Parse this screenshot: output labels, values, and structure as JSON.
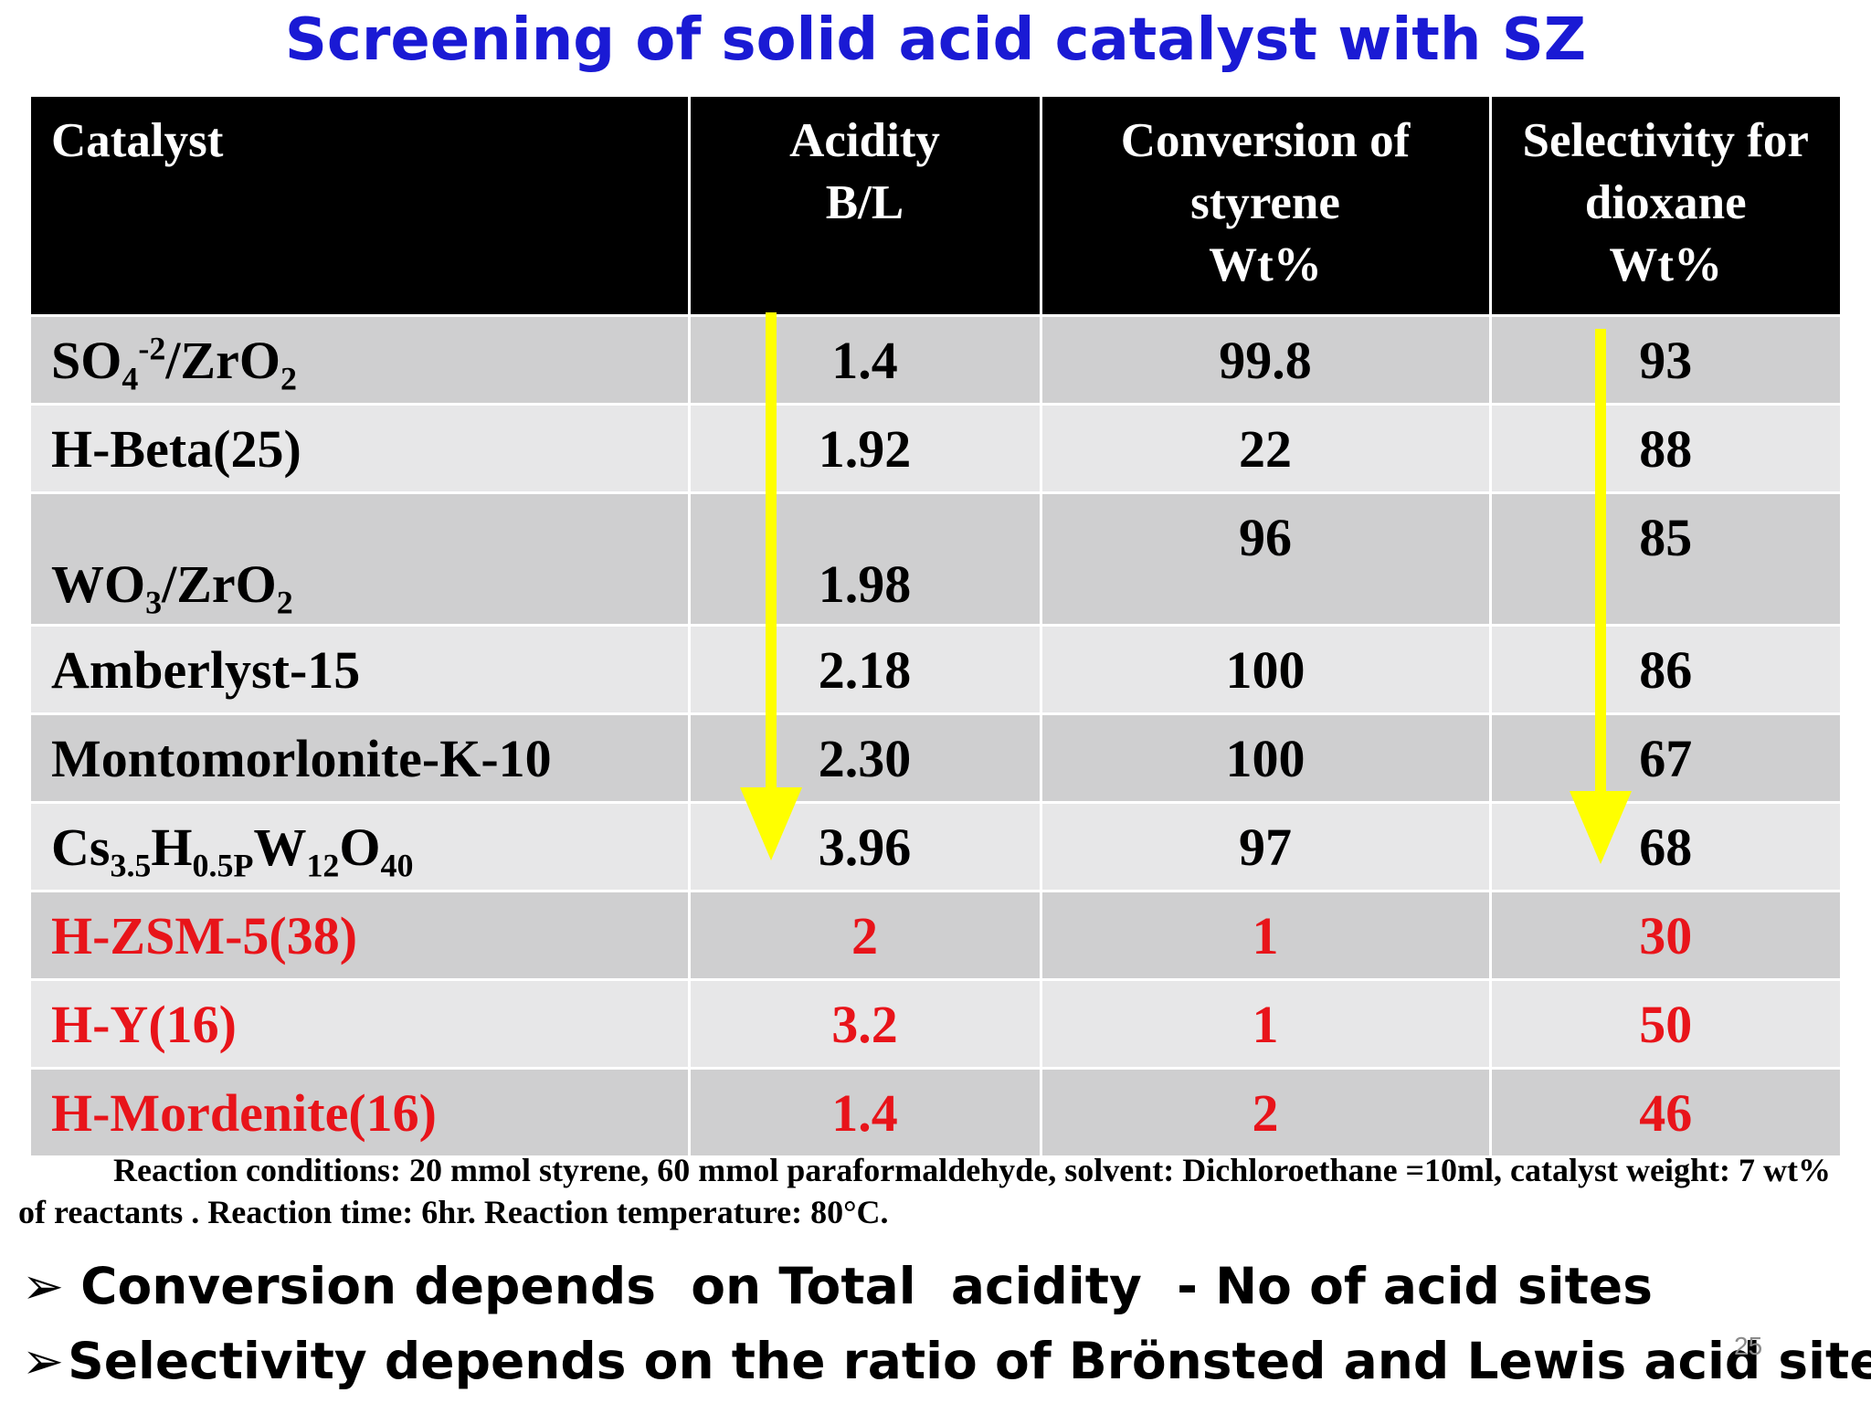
{
  "title": "Screening of solid acid catalyst with SZ",
  "table": {
    "headers": {
      "catalyst": "Catalyst",
      "acidity_l1": "Acidity",
      "acidity_l2": "B/L",
      "conversion_l1": "Conversion of",
      "conversion_l2": "styrene",
      "conversion_l3": "Wt%",
      "selectivity_l1": "Selectivity for",
      "selectivity_l2": "dioxane",
      "selectivity_l3": "Wt%"
    },
    "rows": [
      {
        "acidity": "1.4",
        "conversion": "99.8",
        "selectivity": "93"
      },
      {
        "catalyst": "H-Beta(25)",
        "acidity": "1.92",
        "conversion": "22",
        "selectivity": "88"
      },
      {
        "acidity": "1.98",
        "conversion": "96",
        "selectivity": "85"
      },
      {
        "catalyst": "Amberlyst-15",
        "acidity": "2.18",
        "conversion": "100",
        "selectivity": "86"
      },
      {
        "catalyst": "Montomorlonite-K-10",
        "acidity": "2.30",
        "conversion": "100",
        "selectivity": "67"
      },
      {
        "acidity": "3.96",
        "conversion": "97",
        "selectivity": "68"
      },
      {
        "catalyst": "H-ZSM-5(38)",
        "acidity": "2",
        "conversion": "1",
        "selectivity": "30"
      },
      {
        "catalyst": "H-Y(16)",
        "acidity": "3.2",
        "conversion": "1",
        "selectivity": "50"
      },
      {
        "catalyst": "H-Mordenite(16)",
        "acidity": "1.4",
        "conversion": "2",
        "selectivity": "46"
      }
    ],
    "formula_parts": {
      "so4_a": "SO",
      "so4_sub": "4",
      "so4_sup": "-2",
      "so4_b": "/ZrO",
      "so4_sub2": "2",
      "wo3_a": "WO",
      "wo3_sub": "3",
      "wo3_b": "/ZrO",
      "wo3_sub2": "2",
      "cs_a": "Cs",
      "cs_sub1": "3.5",
      "cs_b": "H",
      "cs_sub2": "0.5P",
      "cs_c": "W",
      "cs_sub3": "12",
      "cs_d": "O",
      "cs_sub4": "40"
    }
  },
  "colors": {
    "title": "#1a1ad4",
    "header_bg": "#000000",
    "row_dark": "#cfcfd0",
    "row_light": "#e7e7e8",
    "highlight_red": "#e8141a",
    "arrow_yellow": "#ffff00"
  },
  "icons": {
    "trend_arrows": "yellow-down-arrow-icon",
    "bullet": "arrow-bullet-icon"
  },
  "note": "Reaction conditions: 20 mmol styrene, 60 mmol paraformaldehyde, solvent: Dichloroethane =10ml, catalyst weight: 7 wt% of reactants . Reaction time: 6hr. Reaction  temperature: 80°C.",
  "bullets": [
    {
      "mark": "➢",
      "text": "Conversion depends  on Total  acidity  - No of acid sites"
    },
    {
      "mark": "➢",
      "text": "Selectivity depends on the ratio of Brönsted and Lewis acid sites"
    }
  ],
  "page_number": "25"
}
